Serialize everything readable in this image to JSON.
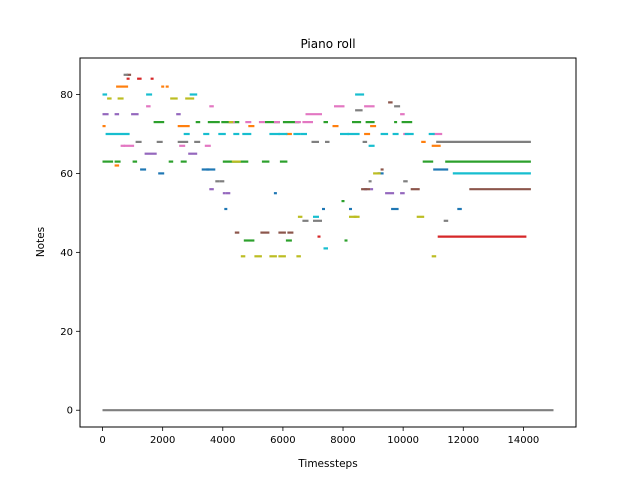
{
  "chart_data": {
    "type": "scatter",
    "title": "Piano roll",
    "xlabel": "Timessteps",
    "ylabel": "Notes",
    "xlim": [
      -750,
      15750
    ],
    "ylim": [
      -4.25,
      89.25
    ],
    "xticks": [
      0,
      2000,
      4000,
      6000,
      8000,
      10000,
      12000,
      14000
    ],
    "yticks": [
      0,
      20,
      40,
      60,
      80
    ],
    "grid": false,
    "legend": "none",
    "series": [
      {
        "color": "#1f77b4",
        "segments": [
          [
            1250,
            1450,
            61
          ],
          [
            1850,
            2050,
            60
          ],
          [
            3300,
            3550,
            61
          ],
          [
            3450,
            3750,
            61
          ],
          [
            4050,
            4150,
            51
          ],
          [
            5700,
            5800,
            55
          ],
          [
            7300,
            7400,
            51
          ],
          [
            8200,
            8300,
            51
          ],
          [
            9150,
            9350,
            60
          ],
          [
            9600,
            9850,
            51
          ],
          [
            11000,
            11500,
            61
          ],
          [
            11800,
            11950,
            51
          ]
        ]
      },
      {
        "color": "#ff7f0e",
        "segments": [
          [
            0,
            100,
            72
          ],
          [
            400,
            550,
            62
          ],
          [
            450,
            850,
            82
          ],
          [
            1950,
            2050,
            82
          ],
          [
            2100,
            2200,
            82
          ],
          [
            2500,
            2900,
            72
          ],
          [
            4850,
            5050,
            72
          ],
          [
            6100,
            6300,
            70
          ],
          [
            7650,
            7850,
            72
          ],
          [
            8700,
            8900,
            70
          ],
          [
            8900,
            9100,
            72
          ],
          [
            10600,
            10750,
            68
          ],
          [
            10950,
            11250,
            67
          ]
        ]
      },
      {
        "color": "#2ca02c",
        "segments": [
          [
            0,
            350,
            63
          ],
          [
            400,
            600,
            63
          ],
          [
            1000,
            1150,
            63
          ],
          [
            1700,
            2050,
            73
          ],
          [
            2200,
            2350,
            63
          ],
          [
            2600,
            2800,
            63
          ],
          [
            3100,
            3250,
            73
          ],
          [
            3500,
            3900,
            73
          ],
          [
            3950,
            4550,
            73
          ],
          [
            4000,
            4850,
            63
          ],
          [
            4700,
            5050,
            43
          ],
          [
            5400,
            5900,
            73
          ],
          [
            5300,
            5550,
            63
          ],
          [
            5900,
            6150,
            63
          ],
          [
            6000,
            6550,
            73
          ],
          [
            6100,
            6300,
            43
          ],
          [
            7350,
            7500,
            73
          ],
          [
            7950,
            8050,
            53
          ],
          [
            8050,
            8150,
            43
          ],
          [
            8300,
            8600,
            73
          ],
          [
            8750,
            9050,
            73
          ],
          [
            9700,
            9800,
            73
          ],
          [
            9950,
            10300,
            73
          ],
          [
            10650,
            11000,
            63
          ],
          [
            11400,
            14250,
            63
          ]
        ]
      },
      {
        "color": "#d62728",
        "segments": [
          [
            800,
            900,
            84
          ],
          [
            1150,
            1300,
            84
          ],
          [
            1600,
            1700,
            84
          ],
          [
            7150,
            7250,
            44
          ],
          [
            11150,
            14100,
            44
          ]
        ]
      },
      {
        "color": "#9467bd",
        "segments": [
          [
            0,
            200,
            75
          ],
          [
            400,
            550,
            75
          ],
          [
            950,
            1200,
            75
          ],
          [
            1400,
            1800,
            65
          ],
          [
            2450,
            2600,
            75
          ],
          [
            2850,
            3150,
            65
          ],
          [
            3550,
            3700,
            56
          ],
          [
            4000,
            4100,
            55
          ],
          [
            4100,
            4250,
            55
          ],
          [
            8700,
            8800,
            56
          ],
          [
            8900,
            9000,
            56
          ],
          [
            9400,
            9700,
            55
          ],
          [
            9900,
            10050,
            55
          ]
        ]
      },
      {
        "color": "#8c564b",
        "segments": [
          [
            800,
            950,
            85
          ],
          [
            4400,
            4550,
            45
          ],
          [
            5250,
            5550,
            45
          ],
          [
            5850,
            6100,
            45
          ],
          [
            6150,
            6350,
            45
          ],
          [
            8600,
            8900,
            56
          ],
          [
            9250,
            9350,
            61
          ],
          [
            9500,
            9650,
            78
          ],
          [
            10250,
            10550,
            56
          ],
          [
            12200,
            14250,
            56
          ]
        ]
      },
      {
        "color": "#e377c2",
        "segments": [
          [
            600,
            750,
            67
          ],
          [
            700,
            1050,
            67
          ],
          [
            1450,
            1600,
            77
          ],
          [
            2550,
            2750,
            67
          ],
          [
            3400,
            3600,
            67
          ],
          [
            3550,
            3700,
            77
          ],
          [
            4200,
            4400,
            73
          ],
          [
            4750,
            4950,
            73
          ],
          [
            5200,
            5400,
            73
          ],
          [
            5700,
            5900,
            73
          ],
          [
            6400,
            6600,
            73
          ],
          [
            6650,
            7000,
            73
          ],
          [
            6750,
            7300,
            75
          ],
          [
            7700,
            8050,
            77
          ],
          [
            8700,
            9050,
            77
          ],
          [
            9900,
            10050,
            75
          ],
          [
            10000,
            10200,
            70
          ],
          [
            11000,
            11300,
            70
          ]
        ]
      },
      {
        "color": "#7f7f7f",
        "segments": [
          [
            0,
            15000,
            0
          ],
          [
            700,
            850,
            85
          ],
          [
            1100,
            1300,
            68
          ],
          [
            1800,
            2000,
            68
          ],
          [
            2500,
            2850,
            68
          ],
          [
            3050,
            3250,
            68
          ],
          [
            3750,
            3900,
            58
          ],
          [
            3900,
            4050,
            58
          ],
          [
            6650,
            6850,
            48
          ],
          [
            6950,
            7200,
            68
          ],
          [
            7000,
            7300,
            48
          ],
          [
            7400,
            7550,
            68
          ],
          [
            8400,
            8650,
            76
          ],
          [
            8650,
            8800,
            68
          ],
          [
            8850,
            8950,
            58
          ],
          [
            9700,
            9900,
            77
          ],
          [
            10000,
            10150,
            58
          ],
          [
            11100,
            14250,
            68
          ],
          [
            11350,
            11500,
            48
          ]
        ]
      },
      {
        "color": "#bcbd22",
        "segments": [
          [
            150,
            300,
            79
          ],
          [
            500,
            700,
            79
          ],
          [
            2250,
            2500,
            79
          ],
          [
            2750,
            3050,
            79
          ],
          [
            4200,
            4350,
            73
          ],
          [
            4300,
            4600,
            63
          ],
          [
            4600,
            4750,
            39
          ],
          [
            5050,
            5300,
            39
          ],
          [
            5550,
            5800,
            39
          ],
          [
            5850,
            6100,
            39
          ],
          [
            6450,
            6600,
            39
          ],
          [
            6500,
            6650,
            49
          ],
          [
            8200,
            8450,
            49
          ],
          [
            8350,
            8550,
            49
          ],
          [
            9000,
            9250,
            60
          ],
          [
            10450,
            10700,
            49
          ],
          [
            10950,
            11100,
            39
          ]
        ]
      },
      {
        "color": "#17becf",
        "segments": [
          [
            0,
            150,
            80
          ],
          [
            100,
            900,
            70
          ],
          [
            1450,
            1650,
            80
          ],
          [
            2700,
            2900,
            70
          ],
          [
            2900,
            3150,
            80
          ],
          [
            3350,
            3550,
            70
          ],
          [
            3850,
            4100,
            70
          ],
          [
            4350,
            4550,
            70
          ],
          [
            4650,
            4950,
            70
          ],
          [
            5550,
            5900,
            70
          ],
          [
            5850,
            6150,
            70
          ],
          [
            6350,
            6600,
            70
          ],
          [
            6600,
            6800,
            70
          ],
          [
            7000,
            7200,
            49
          ],
          [
            7350,
            7500,
            41
          ],
          [
            7900,
            8200,
            70
          ],
          [
            8150,
            8550,
            70
          ],
          [
            8400,
            8700,
            80
          ],
          [
            8850,
            9050,
            67
          ],
          [
            9250,
            9500,
            70
          ],
          [
            9650,
            9850,
            70
          ],
          [
            10050,
            10350,
            70
          ],
          [
            10850,
            11050,
            70
          ],
          [
            11650,
            14250,
            60
          ]
        ]
      }
    ]
  }
}
